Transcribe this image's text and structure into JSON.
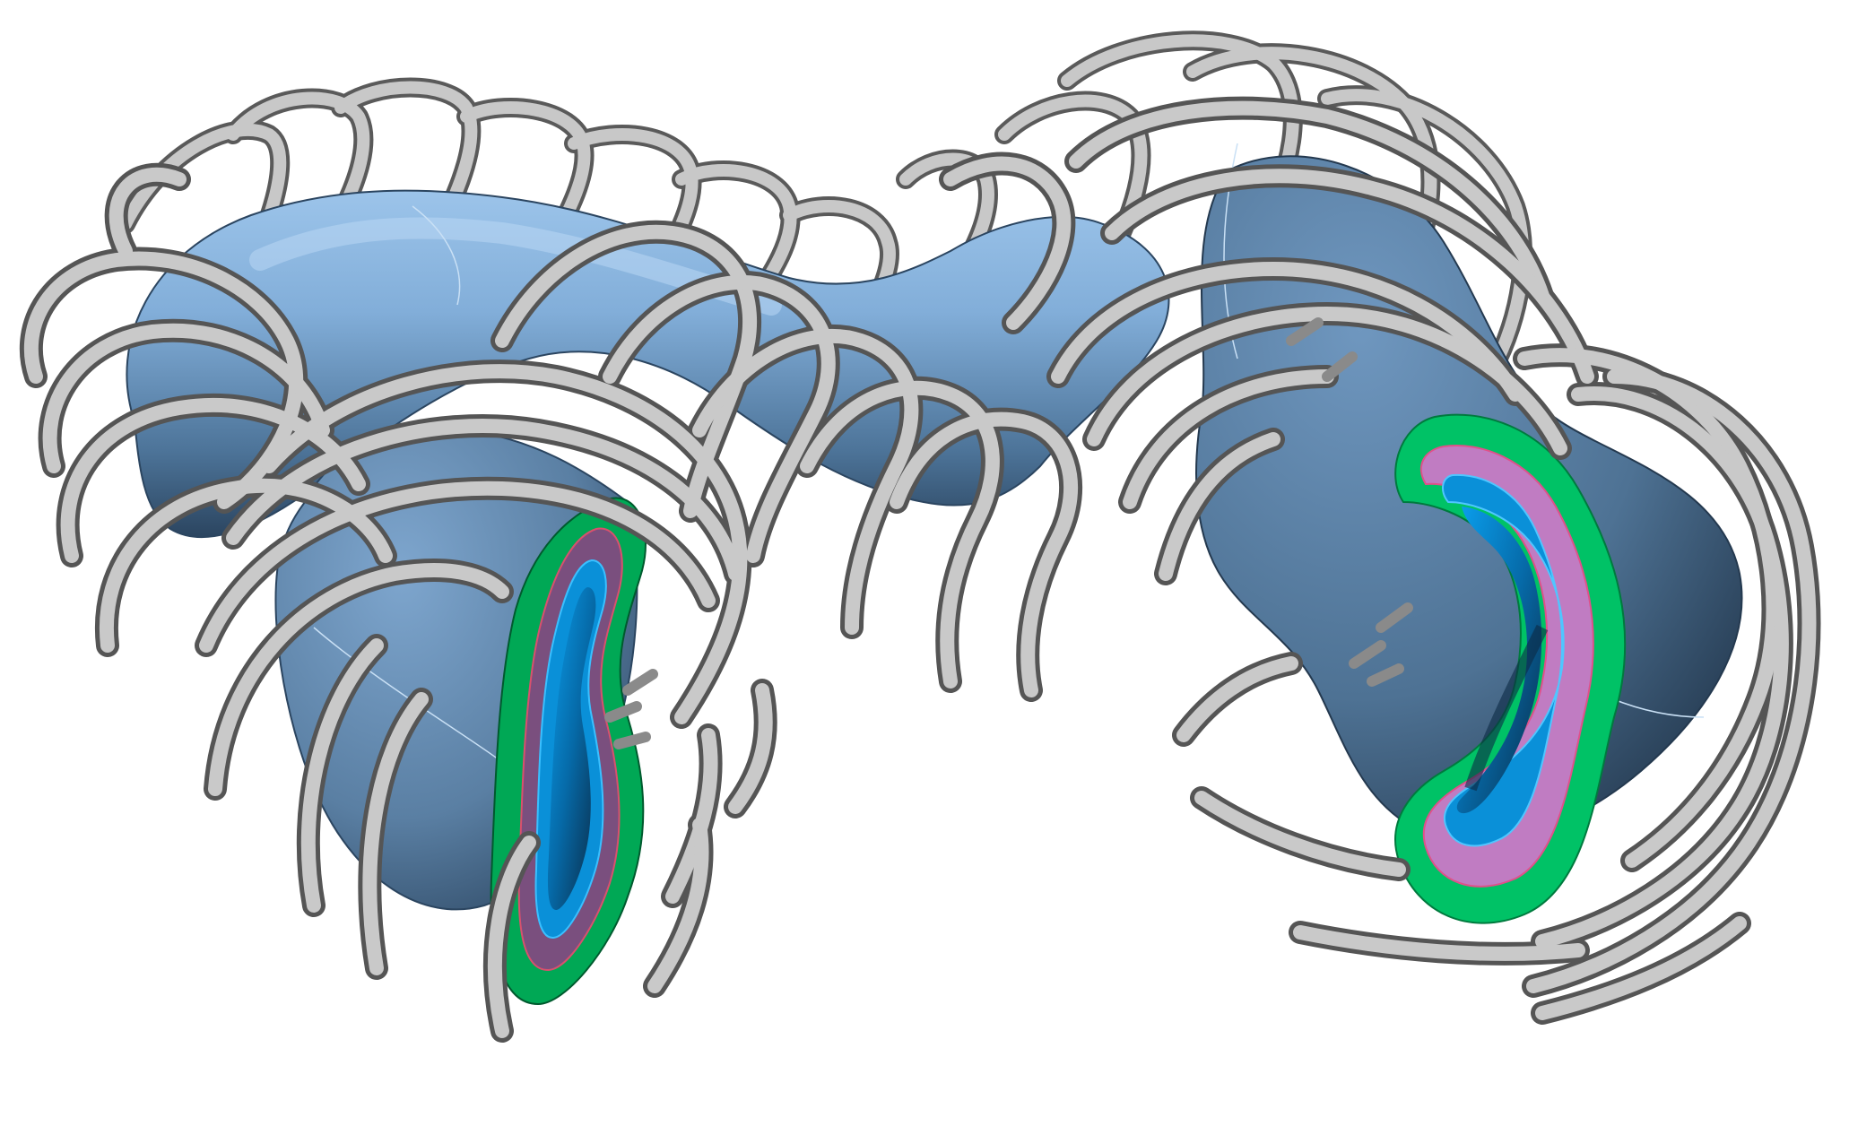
{
  "figure": {
    "colors": {
      "background": "#ffffff",
      "plasma_light": "#8db8e4",
      "plasma_mid": "#5f86ad",
      "plasma_dark": "#2e4a66",
      "coil_face": "#c4c4c4",
      "coil_edge": "#575757",
      "blanket_green": "#00b35a",
      "shield_magenta": "#c07cc2",
      "vessel_blue": "#0a8fd8",
      "vessel_inner": "#0b3d63"
    },
    "components": [
      "plasma-torus",
      "modular-coils",
      "left-cross-section",
      "right-cross-section"
    ]
  }
}
